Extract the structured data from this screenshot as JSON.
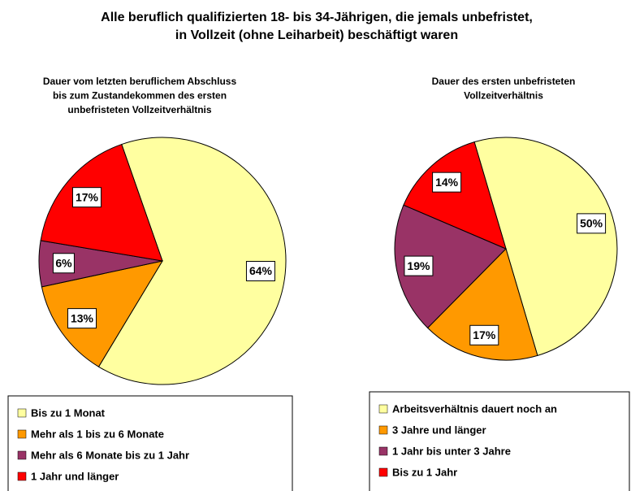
{
  "title": [
    "Alle beruflich qualifizierten 18- bis 34-Jährigen, die jemals unbefristet,",
    "in Vollzeit (ohne Leiharbeit) beschäftigt waren"
  ],
  "chart_data": [
    {
      "type": "pie",
      "title": [
        "Dauer vom letzten beruflichem Abschluss",
        "bis zum Zustandekommen des ersten",
        "unbefristeten Vollzeitverhältnis"
      ],
      "categories": [
        "Bis zu 1 Monat",
        "Mehr als 1 bis zu 6 Monate",
        "Mehr als 6 Monate bis zu 1 Jahr",
        "1 Jahr und länger"
      ],
      "values": [
        64,
        13,
        6,
        17
      ],
      "value_labels": [
        "64%",
        "13%",
        "6%",
        "17%"
      ],
      "colors": [
        "#ffffa0",
        "#ff9900",
        "#993366",
        "#ff0000"
      ]
    },
    {
      "type": "pie",
      "title": [
        "Dauer des ersten unbefristeten",
        "Vollzeitverhältnis"
      ],
      "categories": [
        "Arbeitsverhältnis dauert noch an",
        "3 Jahre und länger",
        "1 Jahr bis unter 3 Jahre",
        "Bis zu 1 Jahr"
      ],
      "values": [
        50,
        17,
        19,
        14
      ],
      "value_labels": [
        "50%",
        "17%",
        "19%",
        "14%"
      ],
      "colors": [
        "#ffffa0",
        "#ff9900",
        "#993366",
        "#ff0000"
      ]
    }
  ]
}
